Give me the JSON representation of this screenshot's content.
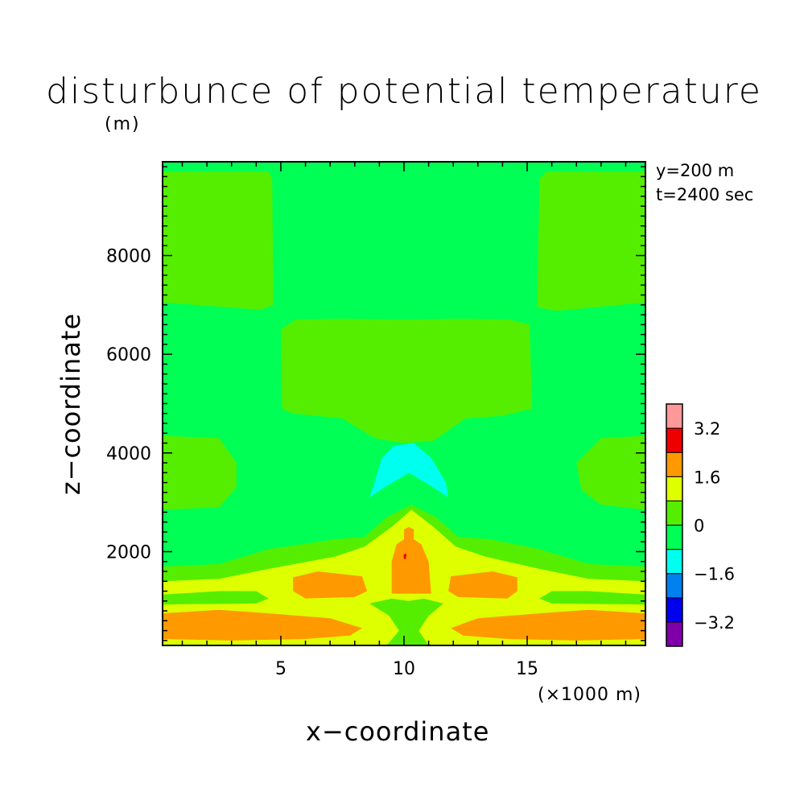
{
  "chart_data": {
    "type": "heatmap",
    "title": "disturbunce of potential temperature",
    "y_unit": "(m)",
    "x_unit": "(×1000 m)",
    "xlabel": "x−coordinate",
    "ylabel": "z−coordinate",
    "annotations": [
      "y=200 m",
      "t=2400 sec"
    ],
    "xlim": [
      0.2,
      19.8
    ],
    "ylim": [
      100,
      9900
    ],
    "x_ticks": [
      "5",
      "10",
      "15"
    ],
    "y_ticks": [
      "2000",
      "4000",
      "6000",
      "8000"
    ],
    "colorbar": {
      "levels": [
        -4.0,
        -3.2,
        -2.4,
        -1.6,
        -0.8,
        0,
        0.8,
        1.6,
        2.4,
        3.2,
        4.0
      ],
      "colors": [
        "#7f00a8",
        "#0000ee",
        "#0080ee",
        "#00ffee",
        "#00ff55",
        "#55ee00",
        "#ddff00",
        "#ff9900",
        "#ee0000",
        "#ff9999"
      ],
      "labels": [
        "−3.2",
        "−1.6",
        "0",
        "1.6",
        "3.2"
      ]
    },
    "background_color": "#00ff55",
    "regions": [
      {
        "value_class": "0 to 0.8",
        "color": "#55ee00",
        "polygon": [
          [
            0.2,
            9700
          ],
          [
            4.5,
            9700
          ],
          [
            4.65,
            9550
          ],
          [
            4.7,
            7000
          ],
          [
            4.2,
            6900
          ],
          [
            0.2,
            7050
          ]
        ]
      },
      {
        "value_class": "0 to 0.8",
        "color": "#55ee00",
        "polygon": [
          [
            15.5,
            9550
          ],
          [
            15.8,
            9700
          ],
          [
            19.8,
            9700
          ],
          [
            19.8,
            7050
          ],
          [
            16.2,
            6880
          ],
          [
            15.4,
            6950
          ]
        ]
      },
      {
        "value_class": "0 to 0.8",
        "color": "#55ee00",
        "polygon": [
          [
            5.0,
            6500
          ],
          [
            5.6,
            6700
          ],
          [
            7.5,
            6720
          ],
          [
            10.0,
            6700
          ],
          [
            12.4,
            6720
          ],
          [
            14.3,
            6700
          ],
          [
            15.1,
            6600
          ],
          [
            15.2,
            4900
          ],
          [
            14.0,
            4750
          ],
          [
            12.5,
            4700
          ],
          [
            11.2,
            4250
          ],
          [
            10.0,
            4200
          ],
          [
            8.8,
            4300
          ],
          [
            7.5,
            4700
          ],
          [
            5.5,
            4800
          ],
          [
            5.05,
            4900
          ]
        ]
      },
      {
        "value_class": "0 to 0.8",
        "color": "#55ee00",
        "polygon": [
          [
            0.2,
            4350
          ],
          [
            2.5,
            4300
          ],
          [
            3.2,
            3800
          ],
          [
            3.2,
            3300
          ],
          [
            2.5,
            2900
          ],
          [
            0.2,
            2850
          ]
        ]
      },
      {
        "value_class": "0 to 0.8",
        "color": "#55ee00",
        "polygon": [
          [
            19.8,
            4350
          ],
          [
            18.0,
            4300
          ],
          [
            17.0,
            3800
          ],
          [
            17.2,
            3250
          ],
          [
            18.0,
            2950
          ],
          [
            19.8,
            2850
          ]
        ]
      },
      {
        "value_class": "-1.6 to -0.8",
        "color": "#00ffee",
        "polygon": [
          [
            9.1,
            3900
          ],
          [
            9.6,
            4150
          ],
          [
            10.4,
            4200
          ],
          [
            11.1,
            3900
          ],
          [
            11.7,
            3400
          ],
          [
            11.8,
            3100
          ],
          [
            11.2,
            3300
          ],
          [
            10.2,
            3600
          ],
          [
            9.2,
            3300
          ],
          [
            8.6,
            3100
          ],
          [
            8.8,
            3400
          ]
        ]
      },
      {
        "value_class": "0 to 0.8",
        "color": "#55ee00",
        "polygon": [
          [
            0.2,
            1700
          ],
          [
            2.5,
            1750
          ],
          [
            4.5,
            2050
          ],
          [
            7.2,
            2250
          ],
          [
            8.4,
            2300
          ],
          [
            9.3,
            2700
          ],
          [
            10.3,
            2950
          ],
          [
            11.3,
            2700
          ],
          [
            12.2,
            2300
          ],
          [
            13.5,
            2250
          ],
          [
            15.5,
            2050
          ],
          [
            17.5,
            1750
          ],
          [
            19.8,
            1700
          ],
          [
            19.8,
            100
          ],
          [
            0.2,
            100
          ]
        ]
      },
      {
        "value_class": "0.8 to 1.6",
        "color": "#ddff00",
        "polygon": [
          [
            0.2,
            1400
          ],
          [
            2.5,
            1450
          ],
          [
            4.5,
            1650
          ],
          [
            7.2,
            1900
          ],
          [
            8.4,
            2100
          ],
          [
            9.5,
            2500
          ],
          [
            10.3,
            2850
          ],
          [
            11.2,
            2500
          ],
          [
            12.1,
            2100
          ],
          [
            13.3,
            1900
          ],
          [
            15.5,
            1650
          ],
          [
            17.5,
            1450
          ],
          [
            19.8,
            1400
          ],
          [
            19.8,
            100
          ],
          [
            0.2,
            100
          ]
        ]
      },
      {
        "value_class": "0 to 0.8",
        "color": "#55ee00",
        "polygon": [
          [
            0.2,
            1130
          ],
          [
            2.5,
            1200
          ],
          [
            4.0,
            1200
          ],
          [
            4.5,
            1050
          ],
          [
            4.0,
            950
          ],
          [
            0.2,
            930
          ]
        ]
      },
      {
        "value_class": "0 to 0.8",
        "color": "#55ee00",
        "polygon": [
          [
            19.8,
            1130
          ],
          [
            17.5,
            1200
          ],
          [
            16.0,
            1200
          ],
          [
            15.5,
            1050
          ],
          [
            16.0,
            950
          ],
          [
            19.8,
            930
          ]
        ]
      },
      {
        "value_class": "0 to 0.8",
        "color": "#55ee00",
        "polygon": [
          [
            8.6,
            950
          ],
          [
            9.5,
            1050
          ],
          [
            10.2,
            1000
          ],
          [
            10.8,
            1050
          ],
          [
            11.6,
            950
          ],
          [
            11.0,
            700
          ],
          [
            10.6,
            400
          ],
          [
            11.0,
            100
          ],
          [
            9.3,
            100
          ],
          [
            9.8,
            400
          ],
          [
            9.4,
            700
          ]
        ]
      },
      {
        "value_class": "1.6 to 2.4",
        "color": "#ff9900",
        "polygon": [
          [
            5.5,
            1480
          ],
          [
            6.5,
            1600
          ],
          [
            8.3,
            1500
          ],
          [
            8.5,
            1200
          ],
          [
            8.0,
            1080
          ],
          [
            6.0,
            1050
          ],
          [
            5.5,
            1200
          ]
        ]
      },
      {
        "value_class": "1.6 to 2.4",
        "color": "#ff9900",
        "polygon": [
          [
            14.6,
            1480
          ],
          [
            13.6,
            1600
          ],
          [
            11.9,
            1500
          ],
          [
            11.8,
            1200
          ],
          [
            12.2,
            1080
          ],
          [
            14.2,
            1050
          ],
          [
            14.6,
            1200
          ]
        ]
      },
      {
        "value_class": "1.6 to 2.4",
        "color": "#ff9900",
        "polygon": [
          [
            9.5,
            1150
          ],
          [
            11.1,
            1150
          ],
          [
            11.0,
            1800
          ],
          [
            10.7,
            2150
          ],
          [
            10.4,
            2250
          ],
          [
            10.4,
            2450
          ],
          [
            10.2,
            2500
          ],
          [
            10.0,
            2450
          ],
          [
            10.0,
            2250
          ],
          [
            9.7,
            2150
          ],
          [
            9.5,
            1800
          ]
        ]
      },
      {
        "value_class": "1.6 to 2.4",
        "color": "#ff9900",
        "polygon": [
          [
            0.2,
            750
          ],
          [
            2.5,
            820
          ],
          [
            4.5,
            750
          ],
          [
            7.0,
            650
          ],
          [
            8.3,
            450
          ],
          [
            7.8,
            300
          ],
          [
            6.0,
            230
          ],
          [
            3.0,
            200
          ],
          [
            0.2,
            230
          ]
        ]
      },
      {
        "value_class": "1.6 to 2.4",
        "color": "#ff9900",
        "polygon": [
          [
            19.8,
            750
          ],
          [
            17.5,
            820
          ],
          [
            15.5,
            750
          ],
          [
            13.0,
            650
          ],
          [
            11.9,
            450
          ],
          [
            12.4,
            300
          ],
          [
            14.2,
            230
          ],
          [
            17.0,
            200
          ],
          [
            19.8,
            230
          ]
        ]
      },
      {
        "value_class": "2.4 to 3.2",
        "color": "#ee0000",
        "polygon": [
          [
            10.0,
            1850
          ],
          [
            10.08,
            1860
          ],
          [
            10.1,
            1950
          ],
          [
            10.04,
            1960
          ],
          [
            9.98,
            1930
          ]
        ]
      }
    ]
  }
}
